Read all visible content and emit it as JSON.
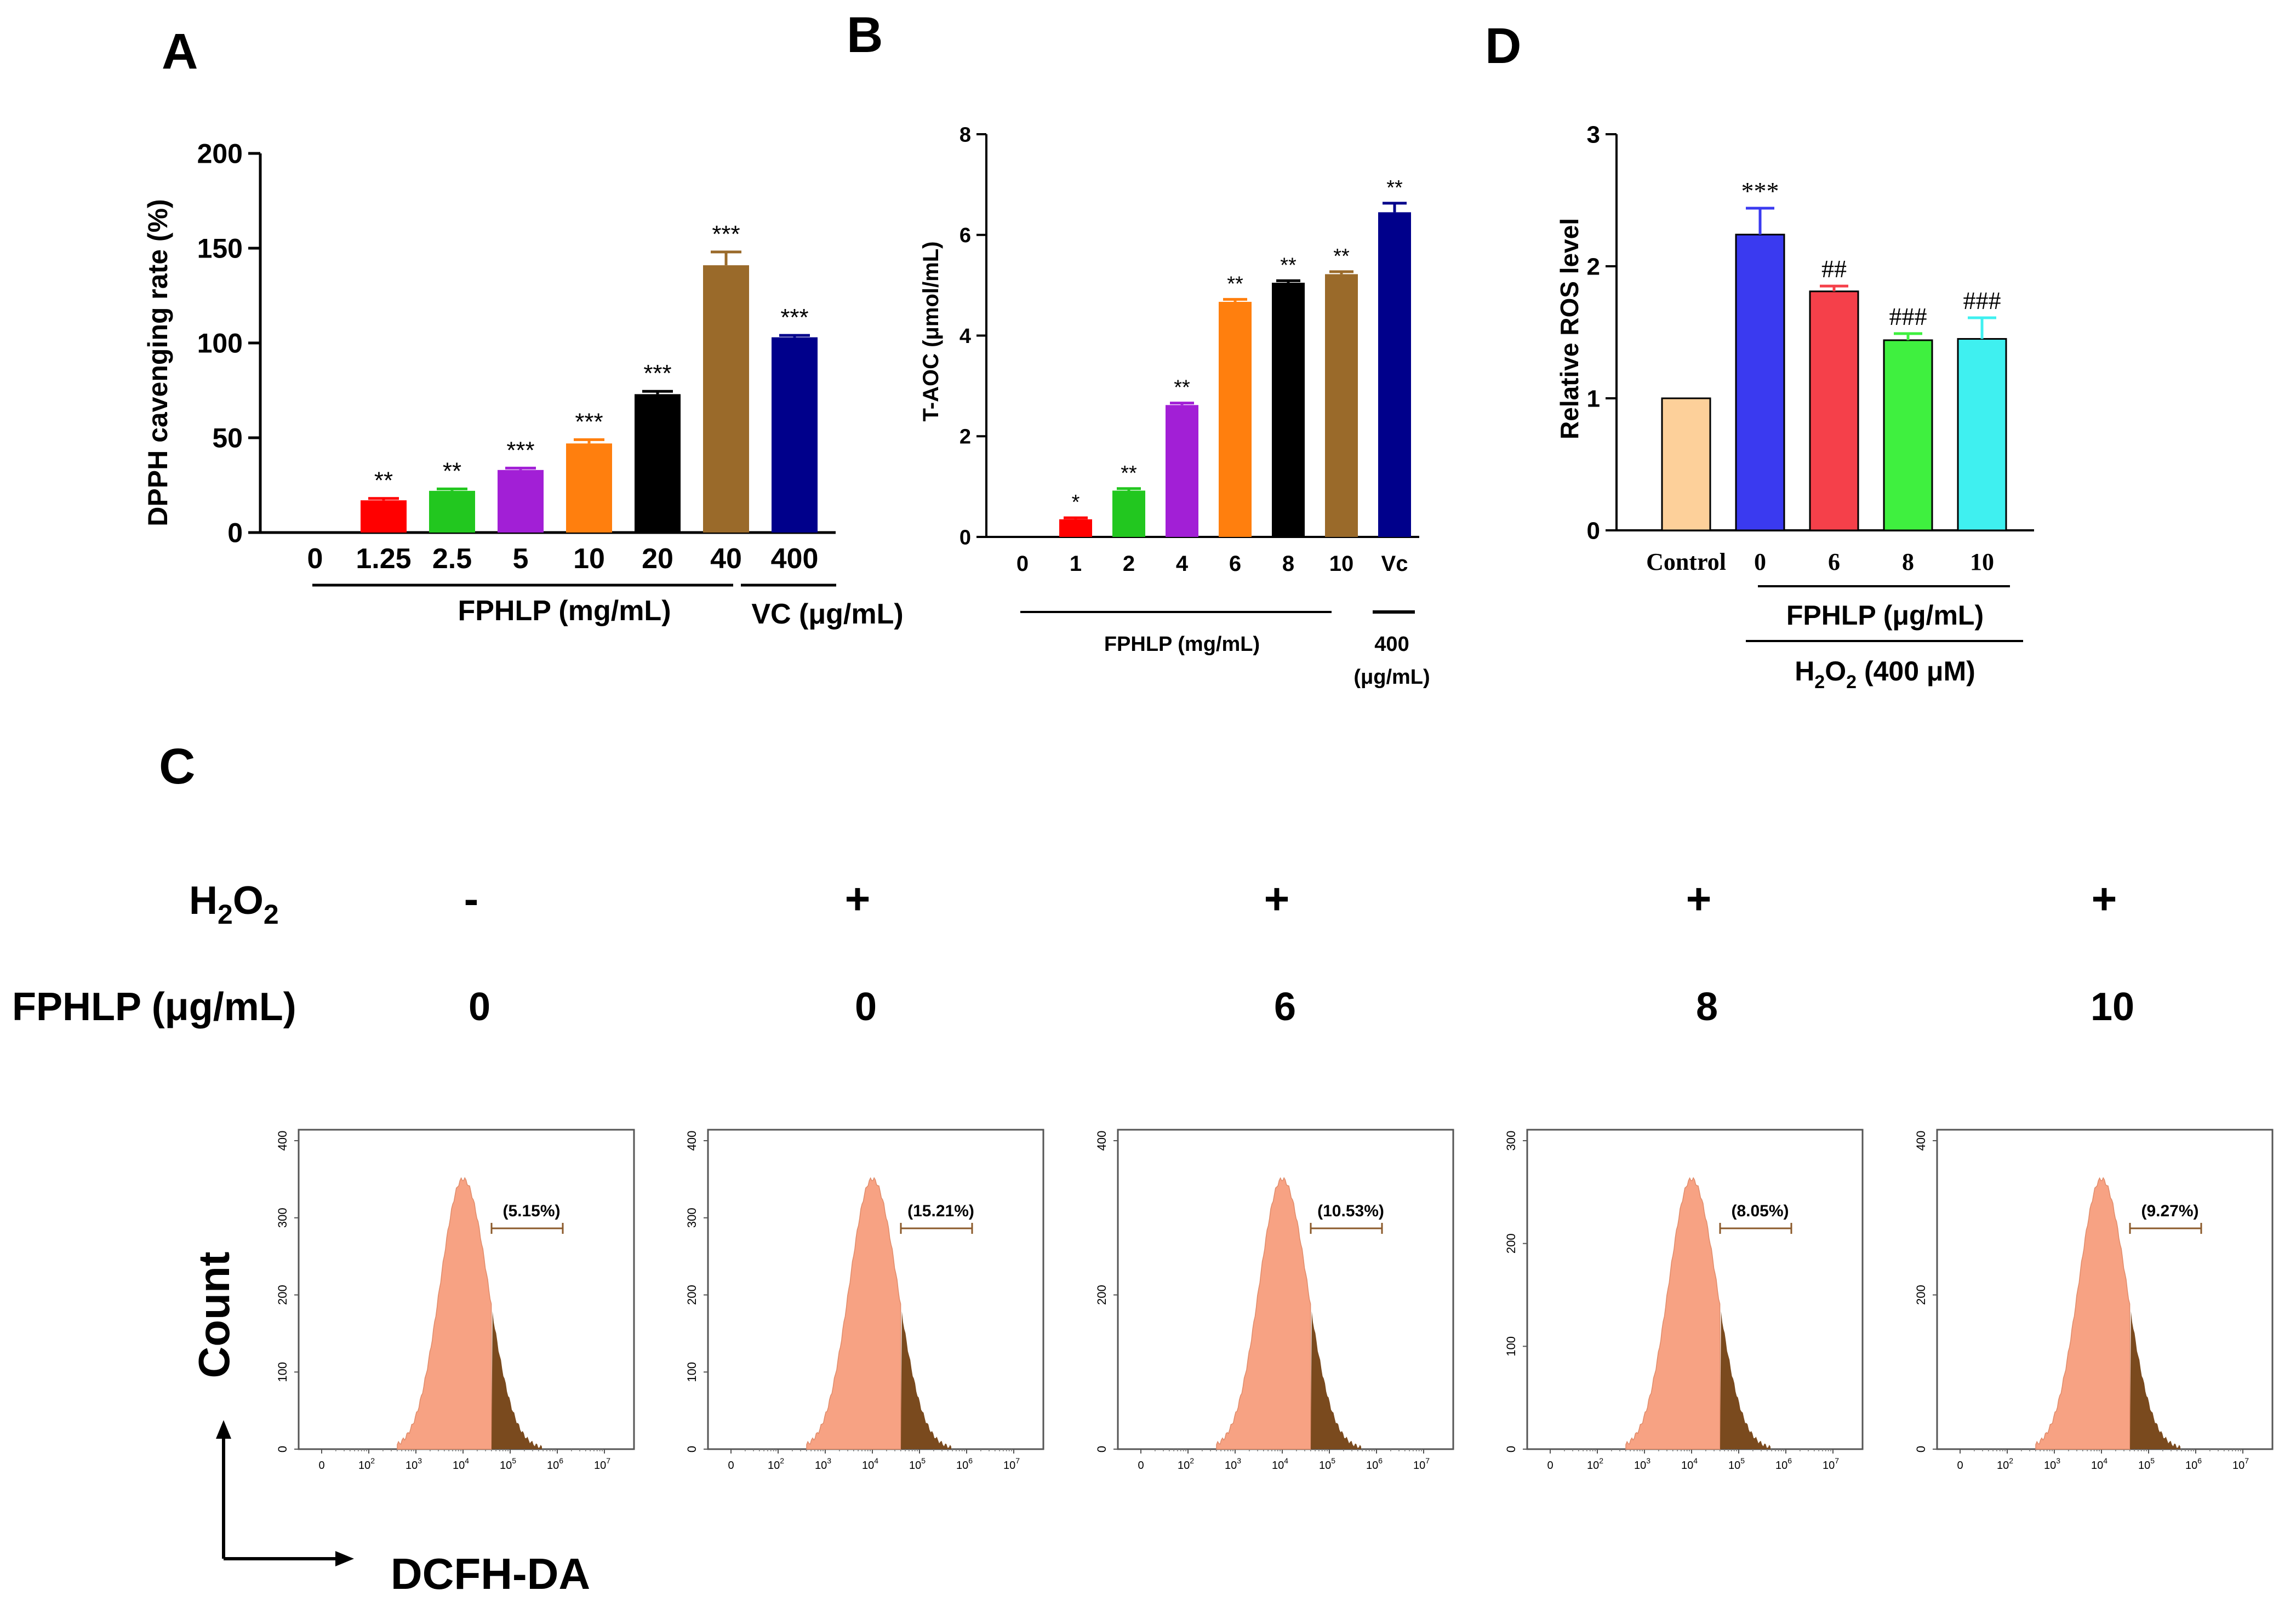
{
  "panel_labels": {
    "a": "A",
    "b": "B",
    "c": "C",
    "d": "D"
  },
  "chart_data": [
    {
      "id": "A",
      "type": "bar",
      "ylabel": "DPPH cavenging rate (%)",
      "ylim": [
        0,
        200
      ],
      "yticks": [
        0,
        50,
        100,
        150,
        200
      ],
      "categories": [
        "0",
        "1.25",
        "2.5",
        "5",
        "10",
        "20",
        "40",
        "400"
      ],
      "values": [
        0,
        17,
        22,
        33,
        47,
        73,
        141,
        103
      ],
      "errors": [
        0,
        1,
        1,
        1,
        2,
        1.5,
        7,
        1
      ],
      "significance": [
        "",
        "**",
        "**",
        "***",
        "***",
        "***",
        "***",
        "***"
      ],
      "colors": [
        "#ffffff",
        "#ff0000",
        "#22c71f",
        "#a21fd6",
        "#ff7f0e",
        "#000000",
        "#9a6a2a",
        "#00008b"
      ],
      "group_labels": [
        "FPHLP (mg/mL)",
        "VC (μg/mL)"
      ]
    },
    {
      "id": "B",
      "type": "bar",
      "ylabel": "T-AOC (μmol/mL)",
      "ylim": [
        0,
        8
      ],
      "yticks": [
        0,
        2,
        4,
        6,
        8
      ],
      "categories": [
        "0",
        "1",
        "2",
        "4",
        "6",
        "8",
        "10",
        "Vc"
      ],
      "values": [
        0,
        0.35,
        0.92,
        2.62,
        4.67,
        5.05,
        5.22,
        6.45
      ],
      "errors": [
        0,
        0.03,
        0.04,
        0.04,
        0.05,
        0.04,
        0.05,
        0.18
      ],
      "significance": [
        "",
        "*",
        "**",
        "**",
        "**",
        "**",
        "**",
        "**"
      ],
      "colors": [
        "#ffffff",
        "#ff0000",
        "#22c71f",
        "#a21fd6",
        "#ff7f0e",
        "#000000",
        "#9a6a2a",
        "#00008b"
      ],
      "group_labels": [
        "FPHLP (mg/mL)",
        "400",
        "(μg/mL)"
      ]
    },
    {
      "id": "D",
      "type": "bar",
      "ylabel": "Relative ROS level",
      "ylim": [
        0,
        3
      ],
      "yticks": [
        0,
        1,
        2,
        3
      ],
      "categories": [
        "Control",
        "0",
        "6",
        "8",
        "10"
      ],
      "values": [
        1.0,
        2.24,
        1.81,
        1.44,
        1.45
      ],
      "errors": [
        0,
        0.2,
        0.04,
        0.05,
        0.16
      ],
      "significance": [
        "",
        "***",
        "##",
        "###",
        "###"
      ],
      "colors": [
        "#fdd09a",
        "#3a3af0",
        "#f5404a",
        "#3ff03f",
        "#3ff0f0"
      ],
      "group_labels": [
        "FPHLP (μg/mL)",
        "H",
        "2",
        "O",
        "2",
        " (400 μM)"
      ]
    },
    {
      "id": "C",
      "type": "area",
      "row_labels": {
        "h2o2": "H",
        "h2o2_sub": "2",
        "h2o2_o": "O",
        "h2o2_sub2": "2",
        "fphlp": "FPHLP (μg/mL)"
      },
      "h2o2_values": [
        "-",
        "+",
        "+",
        "+",
        "+"
      ],
      "fphlp_values": [
        "0",
        "0",
        "6",
        "8",
        "10"
      ],
      "percentages": [
        "5.15%",
        "15.21%",
        "10.53%",
        "8.05%",
        "9.27%"
      ],
      "histogram_ymax": [
        400,
        400,
        400,
        300,
        400
      ],
      "histogram_yticks": [
        [
          0,
          100,
          200,
          300,
          400
        ],
        [
          0,
          100,
          200,
          300,
          400
        ],
        [
          0,
          200,
          400
        ],
        [
          0,
          100,
          200,
          300
        ],
        [
          0,
          200,
          400
        ]
      ],
      "x_ticks": [
        "0",
        "10",
        "2",
        "10",
        "3",
        "10",
        "4",
        "10",
        "5",
        "10",
        "6",
        "10",
        "7"
      ],
      "ylabel": "Count",
      "xlabel": "DCFH-DA",
      "fill_color": "#f7a283",
      "gate_color": "#7a4a1e"
    }
  ]
}
